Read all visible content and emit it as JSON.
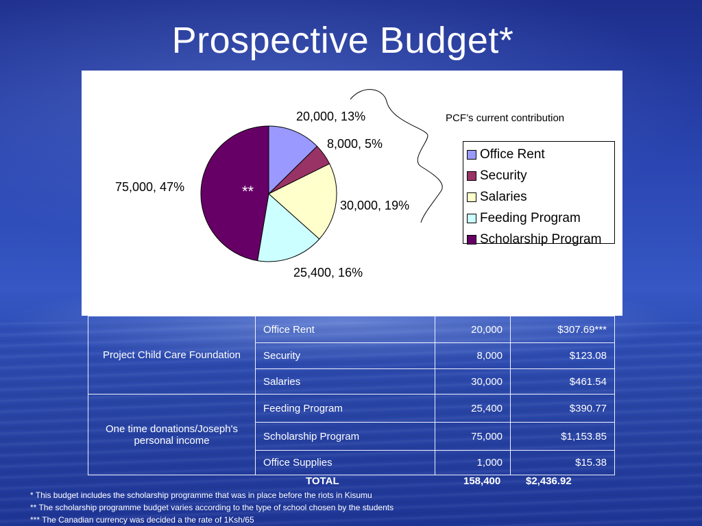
{
  "slide": {
    "title": "Prospective  Budget*"
  },
  "chart_data": {
    "type": "pie",
    "categories": [
      "Office Rent",
      "Security",
      "Salaries",
      "Feeding Program",
      "Scholarship Program"
    ],
    "values": [
      20000,
      8000,
      30000,
      25400,
      75000
    ],
    "percent_labels": [
      "13%",
      "5%",
      "19%",
      "16%",
      "47%"
    ],
    "data_labels": [
      "20,000, 13%",
      "8,000, 5%",
      "30,000, 19%",
      "25,400, 16%",
      "75,000, 47%"
    ],
    "colors": [
      "#9999ff",
      "#993366",
      "#ffffcc",
      "#ccffff",
      "#660066"
    ],
    "legend": [
      "Office Rent",
      "Security",
      "Salaries",
      "Feeding Program",
      "Scholarship Program"
    ],
    "legend_position": "right",
    "annotation": "PCF’s current contribution",
    "center_mark": "**"
  },
  "table": {
    "groups": [
      {
        "name": "Project Child Care Foundation",
        "rows": [
          {
            "item": "Office Rent",
            "ksh": "20,000",
            "cad": "$307.69***"
          },
          {
            "item": "Security",
            "ksh": "8,000",
            "cad": "$123.08"
          },
          {
            "item": "Salaries",
            "ksh": "30,000",
            "cad": "$461.54"
          }
        ]
      },
      {
        "name": "One time donations/Joseph's personal income",
        "rows": [
          {
            "item": "Feeding Program",
            "ksh": "25,400",
            "cad": "$390.77"
          },
          {
            "item": "Scholarship Program",
            "ksh": "75,000",
            "cad": "$1,153.85"
          },
          {
            "item": "Office Supplies",
            "ksh": "1,000",
            "cad": "$15.38"
          }
        ]
      }
    ],
    "total_label": "TOTAL",
    "total_ksh": "158,400",
    "total_cad": "$2,436.92"
  },
  "notes": [
    "* This budget includes the scholarship programme that was in place before the riots in Kisumu",
    "** The scholarship programme budget varies according to the type of school chosen by the students",
    "*** The Canadian currency was decided a the rate of 1Ksh/65"
  ]
}
